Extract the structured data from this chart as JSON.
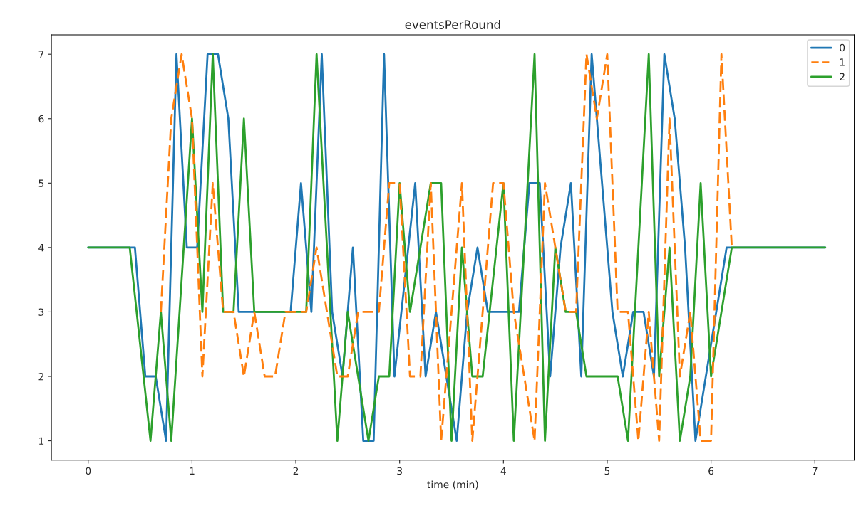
{
  "chart_data": {
    "type": "line",
    "title": "eventsPerRound",
    "xlabel": "time (min)",
    "xlim": [
      -0.355,
      7.38
    ],
    "ylim": [
      0.7,
      7.3
    ],
    "xticks": [
      0,
      1,
      2,
      3,
      4,
      5,
      6,
      7
    ],
    "yticks": [
      1,
      2,
      3,
      4,
      5,
      6,
      7
    ],
    "grid": false,
    "legend": "top right",
    "series": [
      {
        "name": "0",
        "color": "#1f77b4",
        "line_style": "solid",
        "x": [
          0,
          0.45,
          0.55,
          0.65,
          0.75,
          0.85,
          0.95,
          1.05,
          1.15,
          1.25,
          1.35,
          1.45,
          1.95,
          2.05,
          2.15,
          2.25,
          2.35,
          2.45,
          2.55,
          2.65,
          2.75,
          2.85,
          2.95,
          3.15,
          3.25,
          3.35,
          3.45,
          3.55,
          3.65,
          3.75,
          3.85,
          4.15,
          4.25,
          4.35,
          4.45,
          4.55,
          4.65,
          4.75,
          4.85,
          5.05,
          5.15,
          5.25,
          5.35,
          5.45,
          5.55,
          5.65,
          5.75,
          5.85,
          6.15,
          7.1
        ],
        "values": [
          4,
          4,
          2,
          2,
          1,
          7,
          4,
          4,
          7,
          7,
          6,
          3,
          3,
          5,
          3,
          7,
          3,
          2,
          4,
          1,
          1,
          7,
          2,
          5,
          2,
          3,
          2,
          1,
          3,
          4,
          3,
          3,
          5,
          5,
          2,
          4,
          5,
          2,
          7,
          3,
          2,
          3,
          3,
          2,
          7,
          6,
          4,
          1,
          4,
          4
        ]
      },
      {
        "name": "1",
        "color": "#ff7f0e",
        "line_style": "dashed",
        "x": [
          0.7,
          0.8,
          0.9,
          1.0,
          1.1,
          1.2,
          1.3,
          1.4,
          1.5,
          1.6,
          1.7,
          1.8,
          1.9,
          2.1,
          2.2,
          2.4,
          2.5,
          2.6,
          2.8,
          2.9,
          3.0,
          3.1,
          3.2,
          3.3,
          3.4,
          3.6,
          3.7,
          3.9,
          4.0,
          4.1,
          4.2,
          4.3,
          4.4,
          4.5,
          4.6,
          4.7,
          4.8,
          4.9,
          5.0,
          5.1,
          5.2,
          5.3,
          5.4,
          5.5,
          5.6,
          5.7,
          5.8,
          5.9,
          6.0,
          6.1,
          6.2
        ],
        "values": [
          3,
          6,
          7,
          6,
          2,
          5,
          3,
          3,
          2,
          3,
          2,
          2,
          3,
          3,
          4,
          2,
          2,
          3,
          3,
          5,
          5,
          2,
          2,
          5,
          1,
          5,
          1,
          5,
          5,
          3,
          2,
          1,
          5,
          4,
          3,
          3,
          7,
          6,
          7,
          3,
          3,
          1,
          3,
          1,
          6,
          2,
          3,
          1,
          1,
          7,
          4
        ]
      },
      {
        "name": "2",
        "color": "#2ca02c",
        "line_style": "solid",
        "x": [
          0,
          0.4,
          0.6,
          0.7,
          0.8,
          1.0,
          1.1,
          1.2,
          1.3,
          1.4,
          1.5,
          1.6,
          2.1,
          2.2,
          2.4,
          2.5,
          2.7,
          2.8,
          2.9,
          3.0,
          3.1,
          3.3,
          3.4,
          3.5,
          3.6,
          3.7,
          3.8,
          4.0,
          4.1,
          4.3,
          4.4,
          4.5,
          4.6,
          4.7,
          4.8,
          5.1,
          5.2,
          5.4,
          5.5,
          5.6,
          5.7,
          5.8,
          5.9,
          6.0,
          6.2,
          7.1
        ],
        "values": [
          4,
          4,
          1,
          3,
          1,
          6,
          3,
          7,
          3,
          3,
          6,
          3,
          3,
          7,
          1,
          3,
          1,
          2,
          2,
          5,
          3,
          5,
          5,
          1,
          4,
          2,
          2,
          5,
          1,
          7,
          1,
          4,
          3,
          3,
          2,
          2,
          1,
          7,
          2,
          4,
          1,
          2,
          5,
          2,
          4,
          4
        ]
      }
    ]
  }
}
